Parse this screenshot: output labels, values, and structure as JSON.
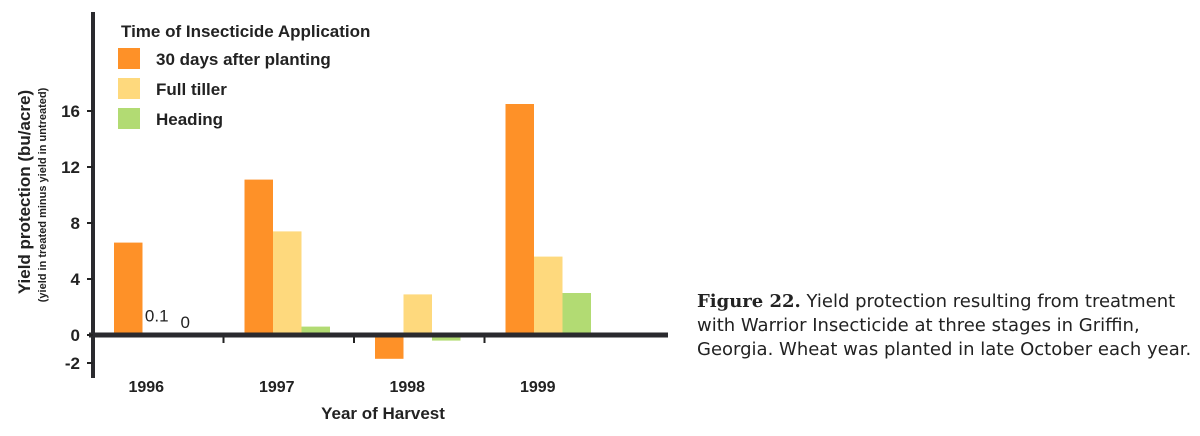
{
  "chart_data": {
    "type": "bar",
    "title": "",
    "xlabel": "Year of Harvest",
    "ylabel": "Yield protection  (bu/acre)",
    "ylabel_sub": "(yield in treated minus yield in untreated)",
    "categories": [
      "1996",
      "1997",
      "1998",
      "1999"
    ],
    "ylim": [
      -2.5,
      20
    ],
    "yticks": [
      -2,
      0,
      4,
      8,
      12,
      16
    ],
    "grid": false,
    "legend_title": "Time of Insecticide Application",
    "legend_position": "top-left",
    "series": [
      {
        "name": "30 days after planting",
        "color": "#fe9128",
        "values": [
          6.6,
          11.1,
          -1.7,
          16.5
        ]
      },
      {
        "name": "Full tiller",
        "color": "#fed97d",
        "values": [
          0.1,
          7.4,
          2.9,
          5.6
        ]
      },
      {
        "name": "Heading",
        "color": "#b2db73",
        "values": [
          0,
          0.6,
          -0.4,
          3.0
        ]
      }
    ],
    "annotations": [
      {
        "category": "1996",
        "series": "Full tiller",
        "text": "0.1"
      },
      {
        "category": "1996",
        "series": "Heading",
        "text": "0"
      }
    ]
  },
  "caption": {
    "label": "Figure 22.",
    "text": "Yield protection resulting from treatment with Warrior Insecticide at three stages in Griffin, Georgia. Wheat was planted in late October each year."
  }
}
